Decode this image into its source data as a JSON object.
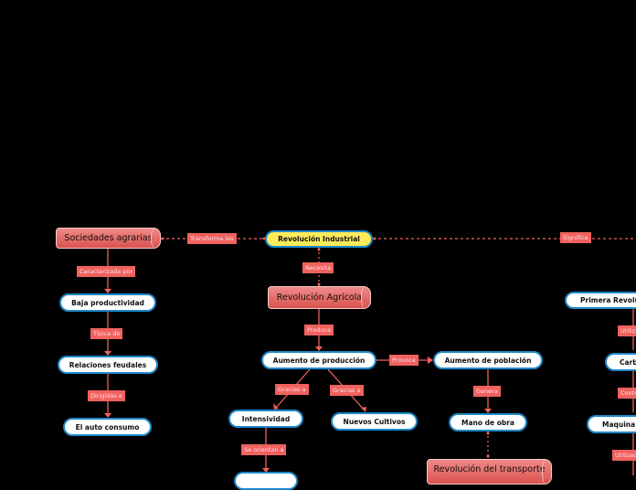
{
  "colors": {
    "background": "#000000",
    "link": "#f0625d",
    "node_border": "#1e88c8",
    "central": "#ffeb5a"
  },
  "nodes": {
    "sociedades": "Sociedades agrarias",
    "industrial": "Revolución Industrial",
    "baja": "Baja productividad",
    "relaciones": "Relaciones feudales",
    "auto": "El auto consumo",
    "agricola": "Revolución Agrícola",
    "produccion": "Aumento de producción",
    "poblacion": "Aumento de población",
    "intensividad": "Intensividad",
    "cultivos": "Nuevos Cultivos",
    "mano": "Mano de obra",
    "transporte": "Revolución del transporte",
    "primera": "Primera Revoluc",
    "carb": "Carb",
    "maquina": "Maquina d"
  },
  "links": {
    "transforma": "Transforma las",
    "significa": "Significa",
    "caracterizada": "Caracterizada por",
    "tipica": "Típica de",
    "dirigidas": "Dirigidas a",
    "necesita": "Necesita",
    "produce": "Produce",
    "provoca": "Provoca",
    "gracias1": "Gracias a",
    "gracias2": "Gracias a",
    "orientan": "Se orientan a",
    "genera": "Genera",
    "utiliz": "Utiliz",
    "conti": "Conti",
    "utilizad": "Utilizad"
  }
}
